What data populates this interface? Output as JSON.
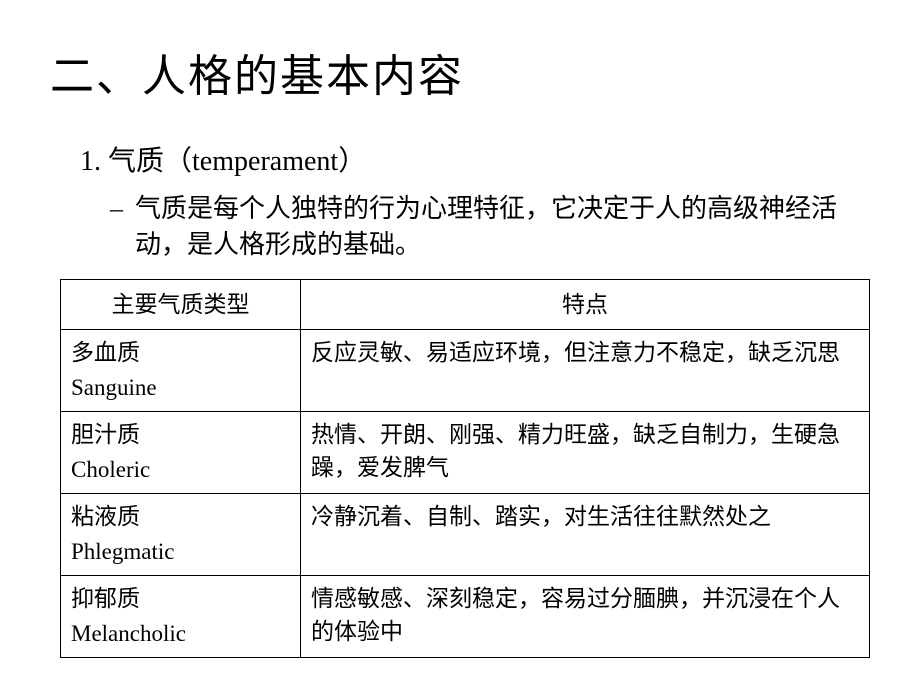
{
  "title": "二、人格的基本内容",
  "section": {
    "number": "1.",
    "heading_cn": "气质",
    "heading_en": "temperament",
    "description": "气质是每个人独特的行为心理特征，它决定于人的高级神经活动，是人格形成的基础。"
  },
  "table": {
    "headers": {
      "col1": "主要气质类型",
      "col2": "特点"
    },
    "rows": [
      {
        "type_cn": "多血质",
        "type_en": "Sanguine",
        "feature": "反应灵敏、易适应环境，但注意力不稳定，缺乏沉思"
      },
      {
        "type_cn": "胆汁质",
        "type_en": "Choleric",
        "feature": "热情、开朗、刚强、精力旺盛，缺乏自制力，生硬急躁，爱发脾气"
      },
      {
        "type_cn": "粘液质",
        "type_en": "Phlegmatic",
        "feature": "冷静沉着、自制、踏实，对生活往往默然处之"
      },
      {
        "type_cn": "抑郁质",
        "type_en": "Melancholic",
        "feature": "情感敏感、深刻稳定，容易过分腼腆，并沉浸在个人的体验中"
      }
    ]
  },
  "page_marker": "·",
  "styling": {
    "background_color": "#ffffff",
    "text_color": "#000000",
    "border_color": "#000000",
    "marker_color": "#bfbfbf",
    "title_fontsize": 44,
    "heading_fontsize": 28,
    "body_fontsize": 26,
    "table_fontsize": 23,
    "col_type_width": 240,
    "font_family_cn": "SimSun",
    "font_family_latin": "Times New Roman"
  }
}
